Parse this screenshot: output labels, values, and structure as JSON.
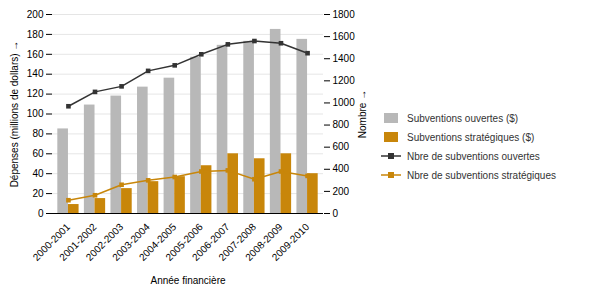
{
  "chart_data": {
    "type": "bar",
    "xlabel": "Année financière",
    "ylabel": "Dépenses (millions de dollars)",
    "y2label": "Nombre",
    "categories": [
      "2000-2001",
      "2001-2002",
      "2002-2003",
      "2003-2004",
      "2004-2005",
      "2005-2006",
      "2006-2007",
      "2007-2008",
      "2008-2009",
      "2009-2010"
    ],
    "series": [
      {
        "name": "Subventions ouvertes ($)",
        "type": "bar",
        "color": "#b8b8b8",
        "values": [
          85,
          109,
          118,
          127,
          136,
          157,
          169,
          173,
          185,
          175
        ]
      },
      {
        "name": "Subventions stratégiques ($)",
        "type": "bar",
        "color": "#c8860a",
        "values": [
          9,
          15,
          25,
          32,
          37,
          48,
          60,
          55,
          60,
          40
        ]
      },
      {
        "name": "Nbre de subventions ouvertes",
        "type": "line",
        "axis": "y2",
        "color": "#333333",
        "marker": "square",
        "values": [
          970,
          1100,
          1150,
          1290,
          1340,
          1440,
          1530,
          1560,
          1540,
          1450
        ]
      },
      {
        "name": "Nbre de subventions stratégiques",
        "type": "line",
        "axis": "y2",
        "color": "#c8860a",
        "marker": "square",
        "values": [
          120,
          165,
          260,
          300,
          330,
          380,
          390,
          310,
          380,
          340
        ]
      }
    ],
    "ylim": [
      0,
      200
    ],
    "yticks": [
      0,
      20,
      40,
      60,
      80,
      100,
      120,
      140,
      160,
      180,
      200
    ],
    "y2lim": [
      0,
      1800
    ],
    "y2ticks": [
      0,
      200,
      400,
      600,
      800,
      1000,
      1200,
      1400,
      1600,
      1800
    ],
    "grid": true,
    "legend": "right"
  }
}
